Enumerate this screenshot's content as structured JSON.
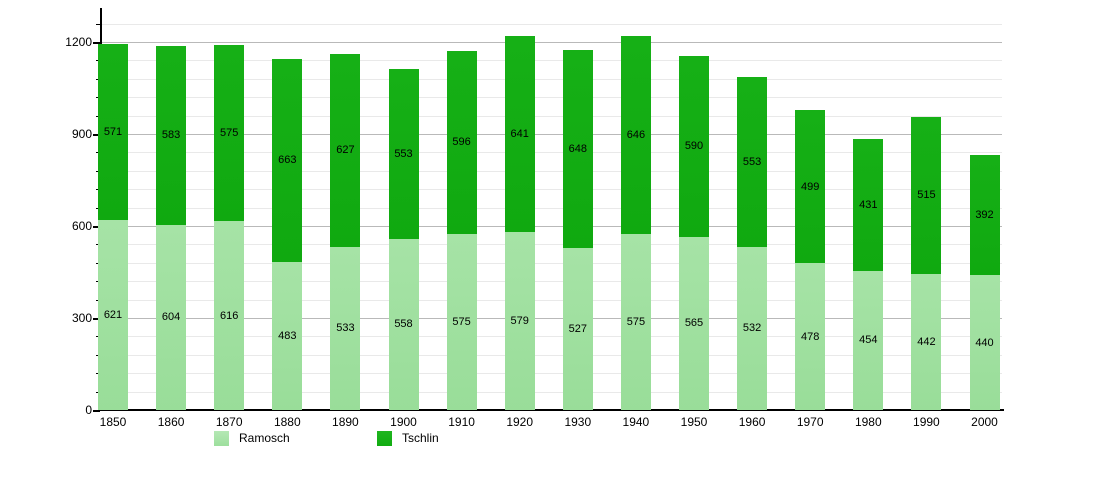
{
  "chart_data": {
    "type": "bar",
    "stacked": true,
    "title": "",
    "xlabel": "",
    "ylabel": "",
    "categories": [
      "1850",
      "1860",
      "1870",
      "1880",
      "1890",
      "1900",
      "1910",
      "1920",
      "1930",
      "1940",
      "1950",
      "1960",
      "1970",
      "1980",
      "1990",
      "2000"
    ],
    "series": [
      {
        "name": "Ramosch",
        "color": "#9ddf9d",
        "values": [
          621,
          604,
          616,
          483,
          533,
          558,
          575,
          579,
          527,
          575,
          565,
          532,
          478,
          454,
          442,
          440
        ]
      },
      {
        "name": "Tschlin",
        "color": "#11ac11",
        "values": [
          571,
          583,
          575,
          663,
          627,
          553,
          596,
          641,
          648,
          646,
          590,
          553,
          499,
          431,
          515,
          392
        ]
      }
    ],
    "ylim": [
      0,
      1300
    ],
    "y_major_ticks": [
      0,
      300,
      600,
      900,
      1200
    ],
    "y_minor_step": 60,
    "grid": true,
    "bar_value_labels": true,
    "legend_position": "bottom"
  }
}
